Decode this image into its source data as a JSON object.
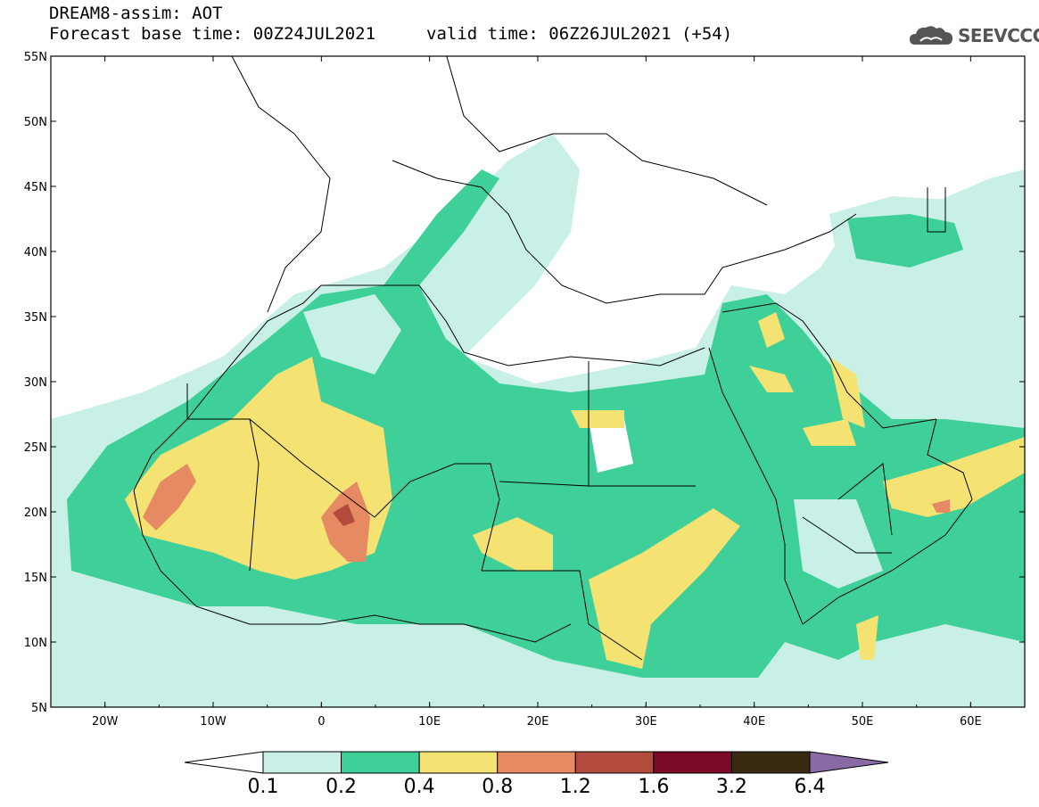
{
  "header": {
    "line1": "DREAM8-assim: AOT",
    "line2": "Forecast base time: 00Z24JUL2021",
    "valid": "valid time: 06Z26JUL2021 (+54)"
  },
  "logo": {
    "text": "SEEVCCC",
    "icon": "cloud-logo-icon"
  },
  "axes": {
    "lat_labels": [
      "55N",
      "50N",
      "45N",
      "40N",
      "35N",
      "30N",
      "25N",
      "20N",
      "15N",
      "10N",
      "5N"
    ],
    "lon_labels": [
      "20W",
      "10W",
      "0",
      "10E",
      "20E",
      "30E",
      "40E",
      "50E",
      "60E"
    ]
  },
  "colorbar": {
    "labels": [
      "0.1",
      "0.2",
      "0.4",
      "0.8",
      "1.2",
      "1.6",
      "3.2",
      "6.4"
    ],
    "colors": [
      "#ffffff",
      "#c8f0e6",
      "#3fd09a",
      "#f4e272",
      "#e58a62",
      "#b24a3e",
      "#7a0a28",
      "#3a2a12",
      "#8a6aa6"
    ]
  },
  "colors": {
    "level1": "#c8f0e6",
    "level2": "#3fd09a",
    "level3": "#f4e272",
    "level4": "#e58a62",
    "level5": "#b24a3e"
  }
}
